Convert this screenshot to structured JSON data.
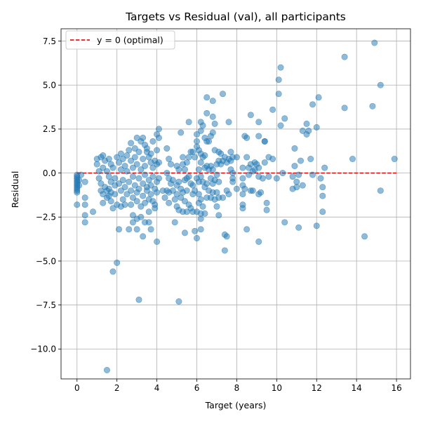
{
  "chart_data": {
    "type": "scatter",
    "title": "Targets vs Residual (val), all participants",
    "xlabel": "Target (years)",
    "ylabel": "Residual",
    "xlim": [
      -0.8,
      16.7
    ],
    "ylim": [
      -11.7,
      8.2
    ],
    "xticks": [
      "0",
      "2",
      "4",
      "6",
      "8",
      "10",
      "12",
      "14",
      "16"
    ],
    "xtick_values": [
      0,
      2,
      4,
      6,
      8,
      10,
      12,
      14,
      16
    ],
    "yticks": [
      "7.5",
      "5.0",
      "2.5",
      "0.0",
      "−2.5",
      "−5.0",
      "−7.5",
      "−10.0"
    ],
    "ytick_values": [
      7.5,
      5.0,
      2.5,
      0.0,
      -2.5,
      -5.0,
      -7.5,
      -10.0
    ],
    "grid": true,
    "legend_position": "top-left",
    "reference_line": {
      "label": "y = 0 (optimal)",
      "y": 0,
      "color": "#e41a1c",
      "style": "dashed"
    },
    "point_color": "#1f77b4",
    "points": [
      [
        0,
        -0.1
      ],
      [
        0,
        -0.2
      ],
      [
        0,
        -0.3
      ],
      [
        0,
        -0.4
      ],
      [
        0,
        -0.5
      ],
      [
        0,
        -0.6
      ],
      [
        0,
        -0.7
      ],
      [
        0,
        -0.8
      ],
      [
        0,
        -0.9
      ],
      [
        0,
        -1.0
      ],
      [
        0,
        -1.1
      ],
      [
        0,
        -1.8
      ],
      [
        0.1,
        -0.4
      ],
      [
        0.1,
        -0.7
      ],
      [
        0.2,
        -0.1
      ],
      [
        0.4,
        -0.5
      ],
      [
        0.4,
        -1.4
      ],
      [
        0.4,
        -1.8
      ],
      [
        0.4,
        -2.4
      ],
      [
        0.4,
        -2.8
      ],
      [
        0.8,
        -2.2
      ],
      [
        1.0,
        0.8
      ],
      [
        1.0,
        0.5
      ],
      [
        1.1,
        0.1
      ],
      [
        1.1,
        -0.3
      ],
      [
        1.2,
        -0.6
      ],
      [
        1.2,
        0.9
      ],
      [
        1.2,
        -1.0
      ],
      [
        1.3,
        0.3
      ],
      [
        1.3,
        -1.2
      ],
      [
        1.3,
        -1.7
      ],
      [
        1.3,
        1.0
      ],
      [
        1.4,
        0.7
      ],
      [
        1.4,
        -0.8
      ],
      [
        1.5,
        -1.4
      ],
      [
        1.5,
        0.1
      ],
      [
        1.5,
        -1.0
      ],
      [
        1.5,
        -11.2
      ],
      [
        1.6,
        0.8
      ],
      [
        1.6,
        -0.2
      ],
      [
        1.6,
        -0.9
      ],
      [
        1.6,
        -1.3
      ],
      [
        1.7,
        0.5
      ],
      [
        1.7,
        -0.5
      ],
      [
        1.7,
        -1.1
      ],
      [
        1.7,
        -1.6
      ],
      [
        1.8,
        -2.0
      ],
      [
        1.8,
        0.3
      ],
      [
        1.8,
        -5.6
      ],
      [
        1.9,
        -0.7
      ],
      [
        1.9,
        -1.2
      ],
      [
        1.9,
        -0.3
      ],
      [
        2.0,
        -5.1
      ],
      [
        2.0,
        0.9
      ],
      [
        2.0,
        -1.8
      ],
      [
        2.1,
        0.6
      ],
      [
        2.1,
        -0.6
      ],
      [
        2.1,
        -3.2
      ],
      [
        2.2,
        1.1
      ],
      [
        2.2,
        0.2
      ],
      [
        2.2,
        -1.0
      ],
      [
        2.2,
        -1.9
      ],
      [
        2.3,
        0.8
      ],
      [
        2.3,
        -0.4
      ],
      [
        2.3,
        -1.5
      ],
      [
        2.4,
        0.4
      ],
      [
        2.4,
        -0.8
      ],
      [
        2.4,
        -1.8
      ],
      [
        2.5,
        1.0
      ],
      [
        2.5,
        -1.2
      ],
      [
        2.5,
        0.1
      ],
      [
        2.6,
        1.3
      ],
      [
        2.6,
        -0.5
      ],
      [
        2.6,
        -3.2
      ],
      [
        2.7,
        0.7
      ],
      [
        2.7,
        -1.0
      ],
      [
        2.7,
        1.7
      ],
      [
        2.7,
        -1.8
      ],
      [
        2.8,
        0.3
      ],
      [
        2.8,
        -0.2
      ],
      [
        2.8,
        -1.4
      ],
      [
        2.8,
        -2.4
      ],
      [
        2.8,
        -2.8
      ],
      [
        2.9,
        0.9
      ],
      [
        2.9,
        -0.7
      ],
      [
        2.9,
        1.4
      ],
      [
        3.0,
        2.0
      ],
      [
        3.0,
        0.5
      ],
      [
        3.0,
        -1.1
      ],
      [
        3.0,
        -1.6
      ],
      [
        3.0,
        -2.6
      ],
      [
        3.0,
        -3.2
      ],
      [
        3.1,
        1.2
      ],
      [
        3.1,
        -0.3
      ],
      [
        3.1,
        -0.9
      ],
      [
        3.1,
        -7.2
      ],
      [
        3.2,
        1.8
      ],
      [
        3.2,
        0.2
      ],
      [
        3.2,
        -1.9
      ],
      [
        3.2,
        -2.5
      ],
      [
        3.3,
        2.0
      ],
      [
        3.3,
        0.8
      ],
      [
        3.3,
        -0.6
      ],
      [
        3.3,
        -1.3
      ],
      [
        3.3,
        -3.6
      ],
      [
        3.4,
        1.6
      ],
      [
        3.4,
        0.4
      ],
      [
        3.4,
        -0.1
      ],
      [
        3.4,
        -1.7
      ],
      [
        3.4,
        -2.8
      ],
      [
        3.5,
        1.2
      ],
      [
        3.5,
        -0.8
      ],
      [
        3.5,
        -1.0
      ],
      [
        3.5,
        1.4
      ],
      [
        3.6,
        0.9
      ],
      [
        3.6,
        -0.4
      ],
      [
        3.6,
        -1.5
      ],
      [
        3.6,
        -2.2
      ],
      [
        3.6,
        -2.8
      ],
      [
        3.7,
        1.1
      ],
      [
        3.7,
        0.6
      ],
      [
        3.7,
        -0.7
      ],
      [
        3.7,
        -1.2
      ],
      [
        3.7,
        -3.2
      ],
      [
        3.8,
        0.3
      ],
      [
        3.8,
        -0.2
      ],
      [
        3.8,
        -1.6
      ],
      [
        3.8,
        1.8
      ],
      [
        3.9,
        0.7
      ],
      [
        3.9,
        -0.9
      ],
      [
        3.9,
        -1.8
      ],
      [
        3.9,
        -2.0
      ],
      [
        4.0,
        2.2
      ],
      [
        4.0,
        1.3
      ],
      [
        4.0,
        0.5
      ],
      [
        4.0,
        -0.5
      ],
      [
        4.0,
        -1.1
      ],
      [
        4.0,
        -3.9
      ],
      [
        4.1,
        2.5
      ],
      [
        4.1,
        2.0
      ],
      [
        4.1,
        0.6
      ],
      [
        4.1,
        -0.3
      ],
      [
        4.3,
        -1.0
      ],
      [
        4.4,
        -1.4
      ],
      [
        4.5,
        -1.0
      ],
      [
        4.5,
        0.0
      ],
      [
        4.5,
        1.4
      ],
      [
        4.6,
        0.8
      ],
      [
        4.6,
        -0.3
      ],
      [
        4.6,
        -1.1
      ],
      [
        4.6,
        -1.7
      ],
      [
        4.7,
        0.5
      ],
      [
        4.7,
        -0.6
      ],
      [
        4.8,
        -1.0
      ],
      [
        4.8,
        -0.4
      ],
      [
        4.9,
        -1.5
      ],
      [
        4.9,
        -2.8
      ],
      [
        5.0,
        0.4
      ],
      [
        5.0,
        -0.7
      ],
      [
        5.0,
        -1.2
      ],
      [
        5.0,
        -1.9
      ],
      [
        5.1,
        0.2
      ],
      [
        5.1,
        -0.5
      ],
      [
        5.1,
        -2.1
      ],
      [
        5.1,
        -7.3
      ],
      [
        5.2,
        2.3
      ],
      [
        5.2,
        -0.9
      ],
      [
        5.2,
        -1.4
      ],
      [
        5.3,
        0.9
      ],
      [
        5.3,
        0.5
      ],
      [
        5.3,
        -1.1
      ],
      [
        5.3,
        -2.2
      ],
      [
        5.4,
        0.2
      ],
      [
        5.4,
        -0.4
      ],
      [
        5.4,
        -1.6
      ],
      [
        5.4,
        -3.4
      ],
      [
        5.5,
        0.6
      ],
      [
        5.5,
        -0.3
      ],
      [
        5.5,
        -1.0
      ],
      [
        5.5,
        -2.2
      ],
      [
        5.6,
        2.9
      ],
      [
        5.6,
        0.9
      ],
      [
        5.6,
        -0.2
      ],
      [
        5.6,
        -1.8
      ],
      [
        5.7,
        1.2
      ],
      [
        5.7,
        -0.6
      ],
      [
        5.7,
        -2.0
      ],
      [
        5.8,
        1.2
      ],
      [
        5.8,
        -0.7
      ],
      [
        5.8,
        -1.2
      ],
      [
        5.8,
        -2.2
      ],
      [
        5.9,
        0.9
      ],
      [
        5.9,
        -1.0
      ],
      [
        5.9,
        -3.3
      ],
      [
        6.0,
        2.2
      ],
      [
        6.0,
        1.8
      ],
      [
        6.0,
        1.5
      ],
      [
        6.0,
        -0.3
      ],
      [
        6.0,
        -2.2
      ],
      [
        6.0,
        -3.7
      ],
      [
        6.1,
        1.3
      ],
      [
        6.1,
        0.2
      ],
      [
        6.1,
        -0.5
      ],
      [
        6.1,
        -1.2
      ],
      [
        6.1,
        -1.7
      ],
      [
        6.2,
        2.9
      ],
      [
        6.2,
        2.4
      ],
      [
        6.2,
        1.1
      ],
      [
        6.2,
        0.6
      ],
      [
        6.2,
        -0.2
      ],
      [
        6.2,
        -1.5
      ],
      [
        6.2,
        -2.3
      ],
      [
        6.2,
        -2.6
      ],
      [
        6.2,
        -3.2
      ],
      [
        6.3,
        2.7
      ],
      [
        6.3,
        0.9
      ],
      [
        6.3,
        -0.5
      ],
      [
        6.3,
        -1.9
      ],
      [
        6.4,
        2.0
      ],
      [
        6.4,
        1.0
      ],
      [
        6.4,
        0.3
      ],
      [
        6.4,
        -0.8
      ],
      [
        6.4,
        -2.3
      ],
      [
        6.5,
        4.3
      ],
      [
        6.5,
        3.4
      ],
      [
        6.5,
        1.8
      ],
      [
        6.5,
        0.4
      ],
      [
        6.5,
        -0.6
      ],
      [
        6.5,
        -1.4
      ],
      [
        6.6,
        1.8
      ],
      [
        6.6,
        0.2
      ],
      [
        6.6,
        -1.0
      ],
      [
        6.7,
        2.1
      ],
      [
        6.7,
        0.4
      ],
      [
        6.7,
        -0.3
      ],
      [
        6.7,
        -1.4
      ],
      [
        6.8,
        4.1
      ],
      [
        6.8,
        3.2
      ],
      [
        6.8,
        2.3
      ],
      [
        6.8,
        0.2
      ],
      [
        6.8,
        -0.6
      ],
      [
        6.8,
        -1.1
      ],
      [
        6.9,
        2.8
      ],
      [
        6.9,
        1.3
      ],
      [
        6.9,
        -0.4
      ],
      [
        6.9,
        -1.5
      ],
      [
        7.0,
        0.5
      ],
      [
        7.0,
        -0.1
      ],
      [
        7.0,
        -1.1
      ],
      [
        7.0,
        -1.9
      ],
      [
        7.1,
        1.2
      ],
      [
        7.1,
        0.7
      ],
      [
        7.1,
        -0.5
      ],
      [
        7.1,
        -1.4
      ],
      [
        7.1,
        -2.4
      ],
      [
        7.2,
        1.1
      ],
      [
        7.2,
        0.5
      ],
      [
        7.3,
        4.5
      ],
      [
        7.3,
        0.7
      ],
      [
        7.3,
        -1.4
      ],
      [
        7.4,
        0.9
      ],
      [
        7.4,
        -3.5
      ],
      [
        7.4,
        -4.4
      ],
      [
        7.5,
        -3.6
      ],
      [
        7.5,
        -1.0
      ],
      [
        7.5,
        0.6
      ],
      [
        7.6,
        2.9
      ],
      [
        7.6,
        0.8
      ],
      [
        7.6,
        -1.2
      ],
      [
        7.7,
        1.2
      ],
      [
        7.7,
        0.7
      ],
      [
        7.7,
        0.2
      ],
      [
        7.8,
        0.9
      ],
      [
        7.8,
        0.0
      ],
      [
        7.8,
        -0.3
      ],
      [
        7.8,
        -0.5
      ],
      [
        8.0,
        0.9
      ],
      [
        8.0,
        -0.9
      ],
      [
        8.3,
        0.3
      ],
      [
        8.3,
        -0.3
      ],
      [
        8.3,
        -0.7
      ],
      [
        8.3,
        -1.2
      ],
      [
        8.3,
        -1.8
      ],
      [
        8.3,
        -2.0
      ],
      [
        8.4,
        2.1
      ],
      [
        8.4,
        -0.9
      ],
      [
        8.5,
        2.0
      ],
      [
        8.5,
        0.9
      ],
      [
        8.5,
        -3.2
      ],
      [
        8.6,
        0.3
      ],
      [
        8.6,
        -0.1
      ],
      [
        8.7,
        3.3
      ],
      [
        8.7,
        0.5
      ],
      [
        8.7,
        -1.0
      ],
      [
        8.8,
        0.1
      ],
      [
        8.8,
        -1.0
      ],
      [
        8.9,
        0.6
      ],
      [
        8.9,
        0.2
      ],
      [
        9.0,
        0.5
      ],
      [
        9.1,
        2.9
      ],
      [
        9.1,
        2.1
      ],
      [
        9.1,
        0.3
      ],
      [
        9.1,
        -0.2
      ],
      [
        9.1,
        -1.2
      ],
      [
        9.1,
        -3.9
      ],
      [
        9.2,
        -1.1
      ],
      [
        9.3,
        -0.3
      ],
      [
        9.4,
        1.8
      ],
      [
        9.4,
        1.8
      ],
      [
        9.4,
        0.6
      ],
      [
        9.5,
        -1.7
      ],
      [
        9.5,
        -2.1
      ],
      [
        9.6,
        0.9
      ],
      [
        9.6,
        -0.2
      ],
      [
        9.8,
        3.6
      ],
      [
        9.8,
        0.8
      ],
      [
        10.0,
        -0.3
      ],
      [
        10.1,
        5.3
      ],
      [
        10.1,
        4.5
      ],
      [
        10.2,
        6.0
      ],
      [
        10.2,
        2.7
      ],
      [
        10.3,
        0.0
      ],
      [
        10.4,
        3.1
      ],
      [
        10.4,
        -2.8
      ],
      [
        10.8,
        -0.2
      ],
      [
        10.8,
        -0.9
      ],
      [
        10.9,
        1.4
      ],
      [
        10.9,
        0.4
      ],
      [
        11.0,
        -0.5
      ],
      [
        11.0,
        -0.8
      ],
      [
        11.1,
        -0.1
      ],
      [
        11.1,
        -3.1
      ],
      [
        11.2,
        0.7
      ],
      [
        11.3,
        2.4
      ],
      [
        11.3,
        -0.7
      ],
      [
        11.5,
        2.8
      ],
      [
        11.5,
        2.2
      ],
      [
        11.6,
        2.4
      ],
      [
        11.7,
        0.8
      ],
      [
        11.8,
        3.9
      ],
      [
        11.8,
        -0.1
      ],
      [
        12.0,
        2.6
      ],
      [
        12.0,
        -3.0
      ],
      [
        12.1,
        4.3
      ],
      [
        12.2,
        -0.3
      ],
      [
        12.3,
        -0.8
      ],
      [
        12.3,
        -1.3
      ],
      [
        12.3,
        -2.2
      ],
      [
        12.4,
        0.3
      ],
      [
        13.4,
        6.6
      ],
      [
        13.4,
        3.7
      ],
      [
        13.8,
        0.8
      ],
      [
        14.4,
        -3.6
      ],
      [
        14.8,
        3.8
      ],
      [
        14.9,
        7.4
      ],
      [
        15.2,
        5.0
      ],
      [
        15.2,
        -1.0
      ],
      [
        15.9,
        0.8
      ]
    ]
  }
}
